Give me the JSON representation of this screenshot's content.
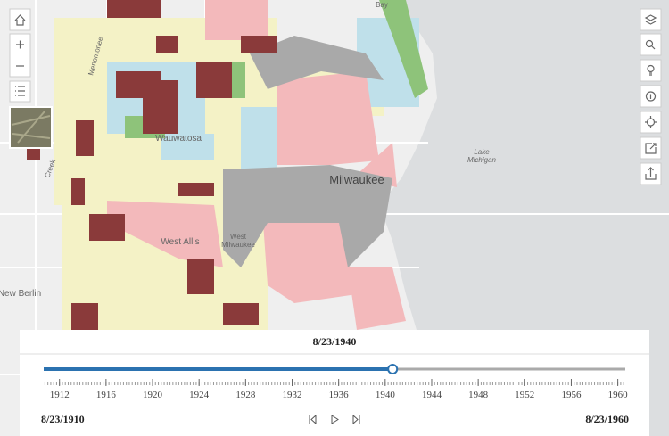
{
  "map": {
    "labels": {
      "city": "Milwaukee",
      "wauwatosa": "Wauwatosa",
      "west_allis": "West Allis",
      "west_milwaukee_1": "West",
      "west_milwaukee_2": "Milwaukee",
      "new_berlin": "New Berlin",
      "lake_1": "Lake",
      "lake_2": "Michigan",
      "bay": "Bay",
      "creek": "Creek",
      "menomonee": "Menomonee"
    }
  },
  "slider": {
    "current": "8/23/1940",
    "start": "8/23/1910",
    "end": "8/23/1960",
    "ticks": [
      1912,
      1916,
      1920,
      1924,
      1928,
      1932,
      1936,
      1940,
      1944,
      1948,
      1952,
      1956,
      1960
    ]
  }
}
